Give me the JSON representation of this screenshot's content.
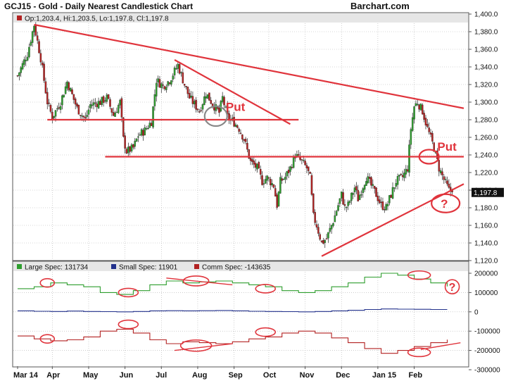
{
  "chart_data": {
    "type": "candlestick",
    "title": "GCJ15 - Gold - Daily Nearest Candlestick Chart",
    "brand": "Barchart.com",
    "ohlc_label": "Op:1,203.4, Hi:1,203.5, Lo:1,197.8, Cl:1,197.8",
    "last_price_label": "1,197.8",
    "last_close": 1197.8,
    "price_ylim": [
      1120,
      1400
    ],
    "price_ticks": [
      "1,400.0",
      "1,380.0",
      "1,360.0",
      "1,340.0",
      "1,320.0",
      "1,300.0",
      "1,280.0",
      "1,260.0",
      "1,240.0",
      "1,220.0",
      "1,200.0",
      "1,180.0",
      "1,160.0",
      "1,140.0",
      "1,120.0"
    ],
    "month_labels": [
      "Mar 14",
      "Apr",
      "May",
      "Jun",
      "Jul",
      "Aug",
      "Sep",
      "Oct",
      "Nov",
      "Dec",
      "Jan 15",
      "Feb"
    ],
    "grid": true,
    "colors": {
      "up": "#2e9e2e",
      "down": "#b22222",
      "annotation": "#e0343c",
      "grid": "#b0b0b0",
      "header_bg": "#e6e6e6",
      "large_spec": "#2e9e2e",
      "small_spec": "#22318c",
      "comm_spec": "#b22222"
    },
    "price_path": [
      [
        0,
        1330
      ],
      [
        6,
        1355
      ],
      [
        10,
        1388
      ],
      [
        14,
        1350
      ],
      [
        18,
        1300
      ],
      [
        21,
        1283
      ],
      [
        26,
        1300
      ],
      [
        30,
        1323
      ],
      [
        36,
        1293
      ],
      [
        41,
        1280
      ],
      [
        44,
        1297
      ],
      [
        50,
        1300
      ],
      [
        54,
        1305
      ],
      [
        58,
        1285
      ],
      [
        62,
        1300
      ],
      [
        64,
        1258
      ],
      [
        66,
        1244
      ],
      [
        70,
        1248
      ],
      [
        73,
        1262
      ],
      [
        77,
        1268
      ],
      [
        81,
        1278
      ],
      [
        84,
        1325
      ],
      [
        88,
        1318
      ],
      [
        92,
        1325
      ],
      [
        97,
        1342
      ],
      [
        101,
        1320
      ],
      [
        104,
        1305
      ],
      [
        110,
        1290
      ],
      [
        114,
        1310
      ],
      [
        118,
        1298
      ],
      [
        122,
        1288
      ],
      [
        124,
        1305
      ],
      [
        127,
        1283
      ],
      [
        131,
        1277
      ],
      [
        134,
        1270
      ],
      [
        137,
        1258
      ],
      [
        141,
        1232
      ],
      [
        145,
        1225
      ],
      [
        148,
        1210
      ],
      [
        151,
        1214
      ],
      [
        155,
        1205
      ],
      [
        157,
        1183
      ],
      [
        159,
        1210
      ],
      [
        162,
        1215
      ],
      [
        165,
        1225
      ],
      [
        168,
        1240
      ],
      [
        171,
        1234
      ],
      [
        173,
        1230
      ],
      [
        175,
        1225
      ],
      [
        177,
        1214
      ],
      [
        179,
        1170
      ],
      [
        181,
        1160
      ],
      [
        184,
        1140
      ],
      [
        187,
        1145
      ],
      [
        191,
        1165
      ],
      [
        196,
        1195
      ],
      [
        198,
        1180
      ],
      [
        200,
        1183
      ],
      [
        204,
        1203
      ],
      [
        206,
        1190
      ],
      [
        208,
        1200
      ],
      [
        211,
        1215
      ],
      [
        214,
        1205
      ],
      [
        217,
        1195
      ],
      [
        220,
        1183
      ],
      [
        223,
        1180
      ],
      [
        226,
        1195
      ],
      [
        229,
        1210
      ],
      [
        233,
        1215
      ],
      [
        236,
        1225
      ],
      [
        238,
        1270
      ],
      [
        240,
        1295
      ],
      [
        242,
        1300
      ],
      [
        245,
        1290
      ],
      [
        248,
        1270
      ],
      [
        252,
        1248
      ],
      [
        255,
        1225
      ],
      [
        258,
        1212
      ],
      [
        261,
        1200
      ],
      [
        263,
        1197.8
      ]
    ],
    "annotations": {
      "put_labels": [
        "Put",
        "Put"
      ],
      "question_marks": [
        "?",
        "?"
      ],
      "resistance_levels": [
        1280,
        1238
      ],
      "downtrend_line": {
        "from": [
          10,
          1388
        ],
        "to": [
          270,
          1293
        ]
      },
      "short_downtrend": {
        "from": [
          95,
          1348
        ],
        "to": [
          165,
          1275
        ]
      },
      "uptrend_line": {
        "from": [
          184,
          1125
        ],
        "to": [
          270,
          1207
        ]
      }
    },
    "cot": {
      "legend": [
        {
          "label": "Large Spec: 131734",
          "color": "#2e9e2e"
        },
        {
          "label": "Small Spec: 11901",
          "color": "#22318c"
        },
        {
          "label": "Comm Spec: -143635",
          "color": "#b22222"
        }
      ],
      "ylim": [
        -300000,
        200000
      ],
      "ticks": [
        "200000",
        "100000",
        "0",
        "-100000",
        "-200000",
        "-300000"
      ],
      "series": [
        {
          "name": "Large Spec",
          "values": [
            120000,
            130000,
            150000,
            140000,
            130000,
            100000,
            90000,
            110000,
            140000,
            160000,
            150000,
            155000,
            160000,
            150000,
            140000,
            130000,
            110000,
            100000,
            110000,
            130000,
            150000,
            180000,
            200000,
            190000,
            170000,
            150000,
            131734
          ]
        },
        {
          "name": "Small Spec",
          "values": [
            5000,
            3000,
            2000,
            4000,
            2000,
            1000,
            0,
            2000,
            5000,
            6000,
            5000,
            6000,
            7000,
            5000,
            3000,
            2000,
            1000,
            0,
            2000,
            5000,
            8000,
            12000,
            15000,
            14000,
            13000,
            12000,
            11901
          ]
        },
        {
          "name": "Comm Spec",
          "values": [
            -125000,
            -140000,
            -150000,
            -145000,
            -130000,
            -100000,
            -90000,
            -110000,
            -145000,
            -165000,
            -155000,
            -160000,
            -165000,
            -155000,
            -140000,
            -130000,
            -110000,
            -100000,
            -110000,
            -135000,
            -160000,
            -190000,
            -215000,
            -200000,
            -180000,
            -160000,
            -143635
          ]
        }
      ]
    }
  }
}
